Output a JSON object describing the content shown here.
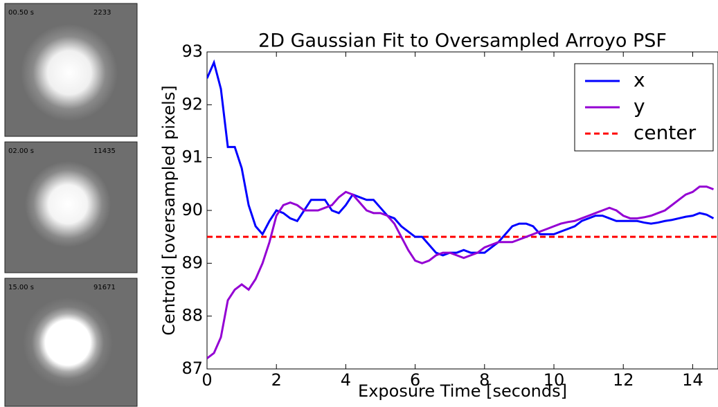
{
  "panels": [
    {
      "time": "00.50 s",
      "count": 2233
    },
    {
      "time": "02.00 s",
      "count": 11435
    },
    {
      "time": "15.00 s",
      "count": 91671
    }
  ],
  "chart_data": {
    "type": "line",
    "title": "2D Gaussian Fit to Oversampled Arroyo PSF",
    "x_label": "Exposure Time [seconds]",
    "y_label": "Centroid [oversampled pixels]",
    "x": [
      0,
      0.2,
      0.4,
      0.6,
      0.8,
      1.0,
      1.2,
      1.4,
      1.6,
      1.8,
      2.0,
      2.2,
      2.4,
      2.6,
      2.8,
      3.0,
      3.2,
      3.4,
      3.6,
      3.8,
      4.0,
      4.2,
      4.4,
      4.6,
      4.8,
      5.0,
      5.2,
      5.4,
      5.6,
      5.8,
      6.0,
      6.2,
      6.4,
      6.6,
      6.8,
      7.0,
      7.2,
      7.4,
      7.6,
      7.8,
      8.0,
      8.2,
      8.4,
      8.6,
      8.8,
      9.0,
      9.2,
      9.4,
      9.6,
      9.8,
      10.0,
      10.2,
      10.4,
      10.6,
      10.8,
      11.0,
      11.2,
      11.4,
      11.6,
      11.8,
      12.0,
      12.2,
      12.4,
      12.6,
      12.8,
      13.0,
      13.2,
      13.4,
      13.6,
      13.8,
      14.0,
      14.2,
      14.4,
      14.6
    ],
    "series": [
      {
        "name": "x",
        "color": "#0000ff",
        "values": [
          92.5,
          92.8,
          92.3,
          91.2,
          91.2,
          90.8,
          90.1,
          89.7,
          89.55,
          89.8,
          90.0,
          89.95,
          89.85,
          89.8,
          90.0,
          90.2,
          90.2,
          90.2,
          90.0,
          89.95,
          90.1,
          90.3,
          90.25,
          90.2,
          90.2,
          90.05,
          89.9,
          89.85,
          89.7,
          89.6,
          89.5,
          89.5,
          89.35,
          89.2,
          89.15,
          89.2,
          89.2,
          89.25,
          89.2,
          89.2,
          89.2,
          89.3,
          89.4,
          89.55,
          89.7,
          89.75,
          89.75,
          89.7,
          89.55,
          89.55,
          89.55,
          89.6,
          89.65,
          89.7,
          89.8,
          89.85,
          89.9,
          89.9,
          89.85,
          89.8,
          89.8,
          89.8,
          89.8,
          89.77,
          89.75,
          89.77,
          89.8,
          89.82,
          89.85,
          89.88,
          89.9,
          89.95,
          89.92,
          89.85
        ]
      },
      {
        "name": "y",
        "color": "#9400d3",
        "values": [
          87.2,
          87.3,
          87.6,
          88.3,
          88.5,
          88.6,
          88.5,
          88.7,
          89.0,
          89.4,
          89.9,
          90.1,
          90.15,
          90.1,
          90.0,
          90.0,
          90.0,
          90.05,
          90.1,
          90.25,
          90.35,
          90.3,
          90.15,
          90.0,
          89.95,
          89.95,
          89.9,
          89.75,
          89.5,
          89.25,
          89.05,
          89.0,
          89.05,
          89.15,
          89.2,
          89.2,
          89.15,
          89.1,
          89.15,
          89.2,
          89.3,
          89.35,
          89.4,
          89.4,
          89.4,
          89.45,
          89.5,
          89.55,
          89.6,
          89.65,
          89.7,
          89.75,
          89.78,
          89.8,
          89.85,
          89.9,
          89.95,
          90.0,
          90.05,
          90.0,
          89.9,
          89.85,
          89.85,
          89.87,
          89.9,
          89.95,
          90.0,
          90.1,
          90.2,
          90.3,
          90.35,
          90.45,
          90.45,
          90.4
        ]
      }
    ],
    "hline": {
      "name": "center",
      "color": "#ff0000",
      "value": 89.5
    },
    "xlim": [
      0,
      14.73
    ],
    "ylim": [
      87,
      93
    ],
    "xticks": [
      0,
      2,
      4,
      6,
      8,
      10,
      12,
      14
    ],
    "yticks": [
      87,
      88,
      89,
      90,
      91,
      92,
      93
    ],
    "legend": "upper right"
  }
}
